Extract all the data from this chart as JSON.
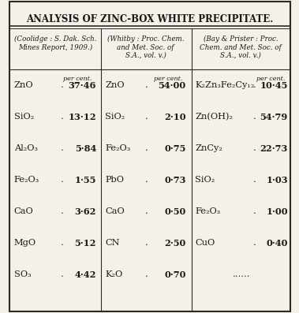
{
  "title": "ANALYSIS OF ZINC-BOX WHITE PRECIPITATE.",
  "col1_header": "(Coolidge : S. Dak. Sch.\nMines Report, 1909.)",
  "col2_header": "(Whitby : Proc. Chem.\nand Met. Soc. of\nS.A., vol. v.)",
  "col3_header": "(Bay & Prister : Proc.\nChem. and Met. Soc. of\nS.A., vol. v.)",
  "per_cent_label": "per cent.",
  "col1_rows": [
    [
      "ZnO",
      ".",
      "37·46"
    ],
    [
      "SiO₂",
      ".",
      "13·12"
    ],
    [
      "Al₂O₃",
      ".",
      "5·84"
    ],
    [
      "Fe₂O₃",
      ".",
      "1·55"
    ],
    [
      "CaO",
      ".",
      "3·62"
    ],
    [
      "MgO",
      ".",
      "5·12"
    ],
    [
      "SO₃",
      ".",
      "4·42"
    ]
  ],
  "col2_rows": [
    [
      "ZnO",
      ".",
      "54·00"
    ],
    [
      "SiO₂",
      ".",
      "2·10"
    ],
    [
      "Fe₂O₃",
      ".",
      "0·75"
    ],
    [
      "PbO",
      ".",
      "0·73"
    ],
    [
      "CaO",
      ".",
      "0·50"
    ],
    [
      "CN",
      ".",
      "2·50"
    ],
    [
      "K₂O",
      ".",
      "0·70"
    ]
  ],
  "col3_rows": [
    [
      "K₂Zn₃Fe₂Cy₁₂",
      ".",
      "10·45"
    ],
    [
      "Zn(OH)₂",
      ".",
      "54·79"
    ],
    [
      "ZnCy₂",
      ".",
      "22·73"
    ],
    [
      "SiO₂",
      ".",
      "1·03"
    ],
    [
      "Fe₂O₃",
      ".",
      "1·00"
    ],
    [
      "CuO",
      ".",
      "0·40"
    ],
    [
      "......",
      "",
      ""
    ]
  ],
  "bg_color": "#f5f0e8",
  "border_color": "#2a2a2a",
  "text_color": "#1a1a1a",
  "highlight_color": "#ffffaa"
}
